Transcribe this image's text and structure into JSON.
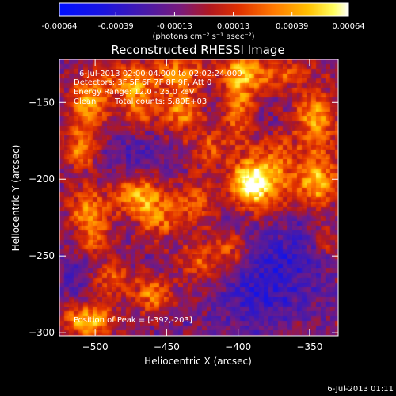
{
  "figure": {
    "title": "Reconstructed RHESSI Image",
    "footer_date": "6-Jul-2013 01:11"
  },
  "colorbar": {
    "ticks": [
      "-0.00064",
      "-0.00039",
      "-0.00013",
      "0.00013",
      "0.00039",
      "0.00064"
    ],
    "tick_values": [
      -0.00064,
      -0.00039,
      -0.00013,
      0.00013,
      0.00039,
      0.00064
    ],
    "range": [
      -0.00064,
      0.00064
    ],
    "unit_label": "(photons cm⁻² s⁻¹ asec⁻²)"
  },
  "annotations": {
    "time_range": "6-Jul-2013 02:00:04.000 to 02:02:24.000",
    "detectors": "Detectors: 3F 5F 6F 7F 8F 9F, Att 0",
    "energy": "Energy Range: 12.0 - 25.0 keV",
    "clean": "Clean",
    "counts": "Total counts: 5.80E+03",
    "peak": "Position of Peak = [-392,-203]"
  },
  "chart_data": {
    "type": "heatmap",
    "title": "Reconstructed RHESSI Image",
    "xlabel": "Heliocentric X (arcsec)",
    "ylabel": "Heliocentric Y (arcsec)",
    "xlim": [
      -525,
      -330
    ],
    "ylim": [
      -302,
      -122
    ],
    "xticks": [
      -500,
      -450,
      -400,
      -350
    ],
    "yticks": [
      -300,
      -250,
      -200,
      -150
    ],
    "xtick_labels": [
      "−500",
      "−450",
      "−400",
      "−350"
    ],
    "ytick_labels": [
      "−300",
      "−250",
      "−200",
      "−150"
    ],
    "colormap": "blue-purple-red-yellow-white (IDL colortable 5)",
    "peak": {
      "x": -392,
      "y": -203
    },
    "blobs": [
      {
        "x": -392,
        "y": -203,
        "amp": 1.0,
        "sx": 10,
        "sy": 10
      },
      {
        "x": -375,
        "y": -195,
        "amp": 0.55,
        "sx": 12,
        "sy": 25
      },
      {
        "x": -345,
        "y": -200,
        "amp": 0.75,
        "sx": 10,
        "sy": 14
      },
      {
        "x": -345,
        "y": -160,
        "amp": 0.7,
        "sx": 10,
        "sy": 12
      },
      {
        "x": -400,
        "y": -150,
        "amp": 0.6,
        "sx": 8,
        "sy": 20
      },
      {
        "x": -385,
        "y": -130,
        "amp": 0.5,
        "sx": 25,
        "sy": 8
      },
      {
        "x": -470,
        "y": -210,
        "amp": 0.7,
        "sx": 12,
        "sy": 10
      },
      {
        "x": -455,
        "y": -225,
        "amp": 0.5,
        "sx": 10,
        "sy": 10
      },
      {
        "x": -440,
        "y": -155,
        "amp": 0.6,
        "sx": 10,
        "sy": 12
      },
      {
        "x": -470,
        "y": -150,
        "amp": 0.55,
        "sx": 8,
        "sy": 14
      },
      {
        "x": -505,
        "y": -150,
        "amp": 0.7,
        "sx": 10,
        "sy": 12
      },
      {
        "x": -510,
        "y": -180,
        "amp": 0.55,
        "sx": 8,
        "sy": 10
      },
      {
        "x": -505,
        "y": -220,
        "amp": 0.6,
        "sx": 10,
        "sy": 10
      },
      {
        "x": -500,
        "y": -240,
        "amp": 0.45,
        "sx": 8,
        "sy": 8
      },
      {
        "x": -505,
        "y": -292,
        "amp": 0.75,
        "sx": 14,
        "sy": 8
      },
      {
        "x": -460,
        "y": -275,
        "amp": 0.6,
        "sx": 10,
        "sy": 8
      },
      {
        "x": -425,
        "y": -255,
        "amp": 0.45,
        "sx": 12,
        "sy": 10
      },
      {
        "x": -490,
        "y": -265,
        "amp": 0.5,
        "sx": 10,
        "sy": 8
      },
      {
        "x": -405,
        "y": -245,
        "amp": 0.35,
        "sx": 8,
        "sy": 8
      },
      {
        "x": -430,
        "y": -215,
        "amp": 0.45,
        "sx": 10,
        "sy": 12
      },
      {
        "x": -420,
        "y": -180,
        "amp": 0.4,
        "sx": 8,
        "sy": 10
      },
      {
        "x": -480,
        "y": -135,
        "amp": 0.45,
        "sx": 12,
        "sy": 8
      },
      {
        "x": -445,
        "y": -130,
        "amp": 0.5,
        "sx": 12,
        "sy": 8
      },
      {
        "x": -340,
        "y": -240,
        "amp": 0.35,
        "sx": 8,
        "sy": 8
      },
      {
        "x": -365,
        "y": -245,
        "amp": -0.35,
        "sx": 20,
        "sy": 20
      },
      {
        "x": -390,
        "y": -275,
        "amp": -0.3,
        "sx": 20,
        "sy": 15
      },
      {
        "x": -470,
        "y": -185,
        "amp": -0.25,
        "sx": 14,
        "sy": 12
      },
      {
        "x": -510,
        "y": -265,
        "amp": -0.2,
        "sx": 10,
        "sy": 10
      },
      {
        "x": -380,
        "y": -165,
        "amp": -0.25,
        "sx": 10,
        "sy": 10
      }
    ]
  }
}
